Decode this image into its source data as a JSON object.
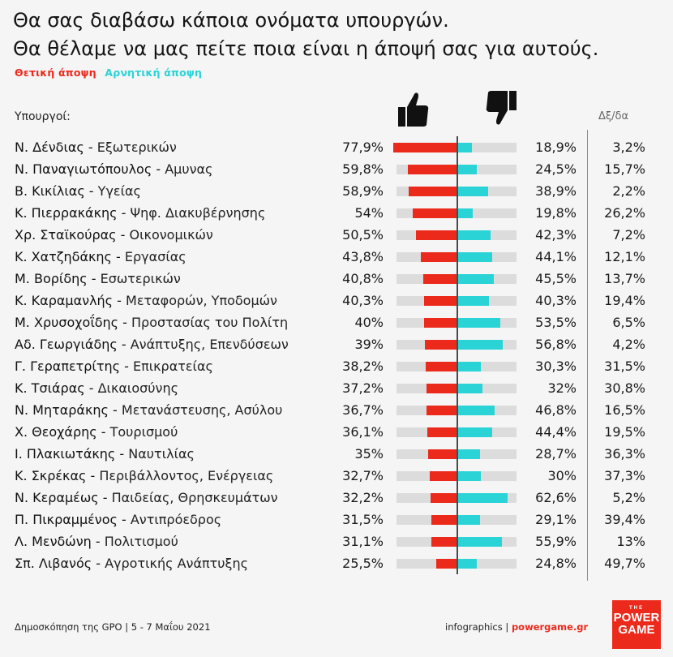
{
  "title_line1": "Θα σας διαβάσω κάποια ονόματα υπουργών.",
  "title_line2": "Θα θέλαμε να μας πείτε ποια είναι η άποψή σας για αυτούς.",
  "legend": {
    "positive": "Θετική άποψη",
    "negative": "Αρνητική άποψη"
  },
  "colors": {
    "positive": "#ec2a1c",
    "negative": "#29d3d6",
    "track": "#dcdcdc"
  },
  "header": {
    "ministers": "Υπουργοί:",
    "dk": "Δξ/δα",
    "positive_icon": "thumbs-up-icon",
    "negative_icon": "thumbs-down-icon"
  },
  "footer": {
    "source": "Δημοσκόπηση της GPO | 5 - 7 Μαΐου 2021",
    "credit_prefix": "infographics | ",
    "credit_brand": "powergame.gr",
    "logo_the": "THE",
    "logo_line1": "POWER",
    "logo_line2": "GAME"
  },
  "chart_data": {
    "type": "bar",
    "unit": "%",
    "series": [
      {
        "name": "Θετική άποψη",
        "key": "positive"
      },
      {
        "name": "Αρνητική άποψη",
        "key": "negative"
      },
      {
        "name": "Δξ/δα",
        "key": "dk"
      }
    ],
    "rows": [
      {
        "name": "Ν. Δένδιας",
        "ministry": "Εξωτερικών",
        "positive": 77.9,
        "positive_label": "77,9%",
        "negative": 18.9,
        "negative_label": "18,9%",
        "dk": 3.2,
        "dk_label": "3,2%"
      },
      {
        "name": "Ν. Παναγιωτόπουλος",
        "ministry": "Αμυνας",
        "positive": 59.8,
        "positive_label": "59,8%",
        "negative": 24.5,
        "negative_label": "24,5%",
        "dk": 15.7,
        "dk_label": "15,7%"
      },
      {
        "name": "Β. Κικίλιας",
        "ministry": "Υγείας",
        "positive": 58.9,
        "positive_label": "58,9%",
        "negative": 38.9,
        "negative_label": "38,9%",
        "dk": 2.2,
        "dk_label": "2,2%"
      },
      {
        "name": "Κ. Πιερρακάκης",
        "ministry": "Ψηφ. Διακυβέρνησης",
        "positive": 54,
        "positive_label": "54%",
        "negative": 19.8,
        "negative_label": "19,8%",
        "dk": 26.2,
        "dk_label": "26,2%"
      },
      {
        "name": "Χρ. Σταϊκούρας",
        "ministry": "Οικονομικών",
        "positive": 50.5,
        "positive_label": "50,5%",
        "negative": 42.3,
        "negative_label": "42,3%",
        "dk": 7.2,
        "dk_label": "7,2%"
      },
      {
        "name": "Κ. Χατζηδάκης",
        "ministry": "Εργασίας",
        "positive": 43.8,
        "positive_label": "43,8%",
        "negative": 44.1,
        "negative_label": "44,1%",
        "dk": 12.1,
        "dk_label": "12,1%"
      },
      {
        "name": "Μ. Βορίδης",
        "ministry": "Εσωτερικών",
        "positive": 40.8,
        "positive_label": "40,8%",
        "negative": 45.5,
        "negative_label": "45,5%",
        "dk": 13.7,
        "dk_label": "13,7%"
      },
      {
        "name": "Κ. Καραμανλής",
        "ministry": "Μεταφορών, Υποδομών",
        "positive": 40.3,
        "positive_label": "40,3%",
        "negative": 40.3,
        "negative_label": "40,3%",
        "dk": 19.4,
        "dk_label": "19,4%"
      },
      {
        "name": "Μ. Χρυσοχοΐδης",
        "ministry": "Προστασίας του Πολίτη",
        "positive": 40,
        "positive_label": "40%",
        "negative": 53.5,
        "negative_label": "53,5%",
        "dk": 6.5,
        "dk_label": "6,5%"
      },
      {
        "name": "Αδ. Γεωργιάδης",
        "ministry": "Ανάπτυξης, Επενδύσεων",
        "positive": 39,
        "positive_label": "39%",
        "negative": 56.8,
        "negative_label": "56,8%",
        "dk": 4.2,
        "dk_label": "4,2%"
      },
      {
        "name": "Γ. Γεραπετρίτης",
        "ministry": "Επικρατείας",
        "positive": 38.2,
        "positive_label": "38,2%",
        "negative": 30.3,
        "negative_label": "30,3%",
        "dk": 31.5,
        "dk_label": "31,5%"
      },
      {
        "name": "Κ. Τσιάρας",
        "ministry": "Δικαιοσύνης",
        "positive": 37.2,
        "positive_label": "37,2%",
        "negative": 32,
        "negative_label": "32%",
        "dk": 30.8,
        "dk_label": "30,8%"
      },
      {
        "name": "Ν. Μηταράκης",
        "ministry": "Μετανάστευσης, Ασύλου",
        "positive": 36.7,
        "positive_label": "36,7%",
        "negative": 46.8,
        "negative_label": "46,8%",
        "dk": 16.5,
        "dk_label": "16,5%"
      },
      {
        "name": "Χ. Θεοχάρης",
        "ministry": "Τουρισμού",
        "positive": 36.1,
        "positive_label": "36,1%",
        "negative": 44.4,
        "negative_label": "44,4%",
        "dk": 19.5,
        "dk_label": "19,5%"
      },
      {
        "name": "Ι. Πλακιωτάκης",
        "ministry": "Ναυτιλίας",
        "positive": 35,
        "positive_label": "35%",
        "negative": 28.7,
        "negative_label": "28,7%",
        "dk": 36.3,
        "dk_label": "36,3%"
      },
      {
        "name": "Κ. Σκρέκας",
        "ministry": "Περιβάλλοντος, Ενέργειας",
        "positive": 32.7,
        "positive_label": "32,7%",
        "negative": 30,
        "negative_label": "30%",
        "dk": 37.3,
        "dk_label": "37,3%"
      },
      {
        "name": "Ν. Κεραμέως",
        "ministry": "Παιδείας, Θρησκευμάτων",
        "positive": 32.2,
        "positive_label": "32,2%",
        "negative": 62.6,
        "negative_label": "62,6%",
        "dk": 5.2,
        "dk_label": "5,2%"
      },
      {
        "name": "Π. Πικραμμένος",
        "ministry": "Αντιπρόεδρος",
        "positive": 31.5,
        "positive_label": "31,5%",
        "negative": 29.1,
        "negative_label": "29,1%",
        "dk": 39.4,
        "dk_label": "39,4%"
      },
      {
        "name": "Λ. Μενδώνη",
        "ministry": "Πολιτισμού",
        "positive": 31.1,
        "positive_label": "31,1%",
        "negative": 55.9,
        "negative_label": "55,9%",
        "dk": 13,
        "dk_label": "13%"
      },
      {
        "name": "Σπ. Λιβανός",
        "ministry": "Αγροτικής Ανάπτυξης",
        "positive": 25.5,
        "positive_label": "25,5%",
        "negative": 24.8,
        "negative_label": "24,8%",
        "dk": 49.7,
        "dk_label": "49,7%"
      }
    ]
  }
}
